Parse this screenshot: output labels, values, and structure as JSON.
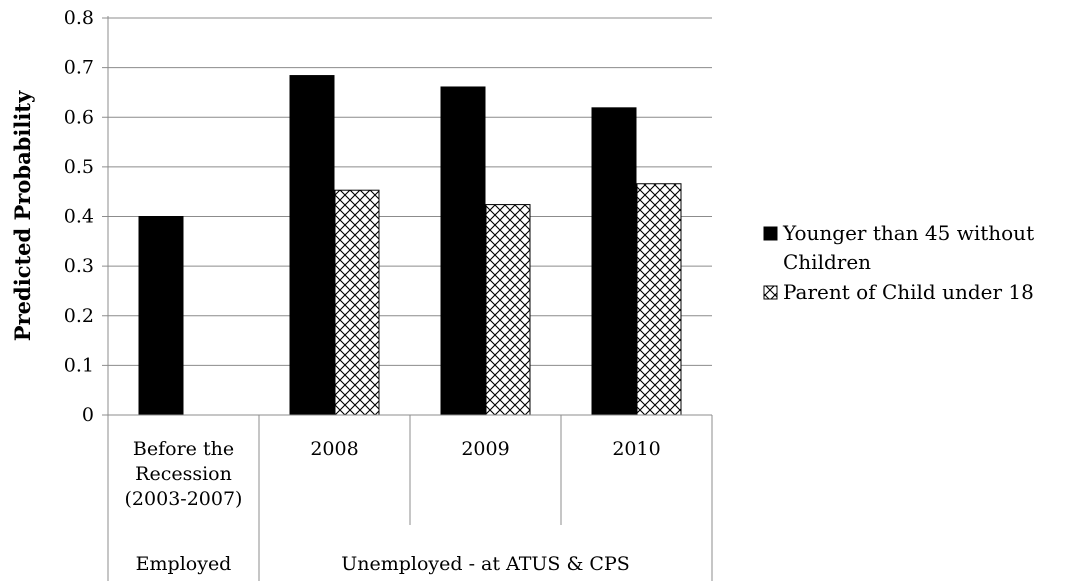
{
  "chart_data": {
    "type": "bar",
    "title": "",
    "xlabel": "",
    "ylabel": "Predicted Probability",
    "ylim": [
      0,
      0.8
    ],
    "yticks": [
      0,
      0.1,
      0.2,
      0.3,
      0.4,
      0.5,
      0.6,
      0.7,
      0.8
    ],
    "ytick_labels": [
      "0",
      "0.1",
      "0.2",
      "0.3",
      "0.4",
      "0.5",
      "0.6",
      "0.7",
      "0.8"
    ],
    "grid": true,
    "legend_position": "right",
    "categories": [
      [
        "Before the",
        "Recession",
        "(2003-2007)"
      ],
      [
        "2008"
      ],
      [
        "2009"
      ],
      [
        "2010"
      ]
    ],
    "category_groups": [
      {
        "label": "Employed",
        "span": 1
      },
      {
        "label": "Unemployed - at ATUS & CPS",
        "span": 3
      }
    ],
    "series": [
      {
        "name": "Younger than 45 without Children",
        "name_lines": [
          "Younger than 45 without",
          "Children"
        ],
        "values": [
          0.4,
          0.684,
          0.661,
          0.619
        ],
        "color": "#000000",
        "pattern": "solid"
      },
      {
        "name": "Parent of Child under 18",
        "name_lines": [
          "Parent of Child under 18"
        ],
        "values": [
          null,
          0.453,
          0.424,
          0.466
        ],
        "color": "#000000",
        "pattern": "crosshatch"
      }
    ]
  }
}
